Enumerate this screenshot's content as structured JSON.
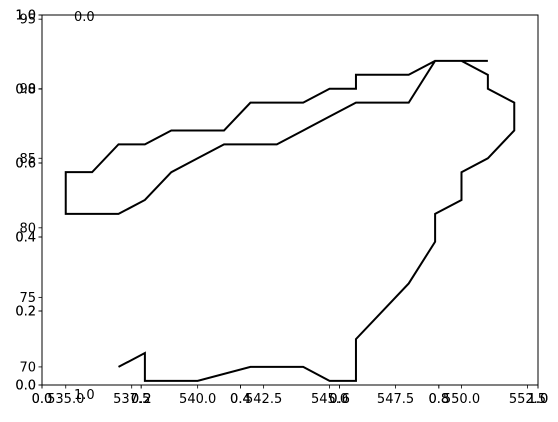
{
  "chart_data": [
    {
      "type": "line",
      "title": "",
      "xlabel": "",
      "ylabel": "",
      "xlim": [
        534.1,
        552.9
      ],
      "ylim": [
        68.7,
        95.3
      ],
      "xticks": [
        {
          "value": 535.0,
          "label": "535.0"
        },
        {
          "value": 537.5,
          "label": "537.5"
        },
        {
          "value": 540.0,
          "label": "540.0"
        },
        {
          "value": 542.5,
          "label": "542.5"
        },
        {
          "value": 545.0,
          "label": "545.0"
        },
        {
          "value": 547.5,
          "label": "547.5"
        },
        {
          "value": 550.0,
          "label": "550.0"
        },
        {
          "value": 552.5,
          "label": "552.5"
        }
      ],
      "yticks": [
        {
          "value": 70,
          "label": "70"
        },
        {
          "value": 75,
          "label": "75"
        },
        {
          "value": 80,
          "label": "80"
        },
        {
          "value": 85,
          "label": "85"
        },
        {
          "value": 90,
          "label": "90"
        },
        {
          "value": 95,
          "label": "95"
        }
      ],
      "grid": false,
      "series": [
        {
          "color": "#000000",
          "x": [
            537,
            538,
            538,
            540,
            542,
            544,
            545,
            546,
            546,
            547,
            548,
            549,
            549,
            550,
            550,
            551,
            552,
            552,
            551,
            551,
            550,
            549,
            548,
            546,
            545,
            544,
            543,
            541,
            540,
            539,
            538,
            537,
            535,
            535,
            536,
            537,
            538,
            539,
            541,
            542,
            544,
            545,
            546,
            546,
            548,
            549,
            551,
            551
          ],
          "y": [
            70,
            71,
            69,
            69,
            70,
            70,
            69,
            69,
            72,
            74,
            76,
            79,
            81,
            82,
            84,
            85,
            87,
            89,
            90,
            91,
            92,
            92,
            89,
            89,
            88,
            87,
            86,
            86,
            85,
            84,
            82,
            81,
            81,
            84,
            84,
            86,
            86,
            87,
            87,
            89,
            89,
            90,
            90,
            91,
            91,
            92,
            92,
            92
          ]
        }
      ]
    },
    {
      "type": "line",
      "xlim": [
        0.0,
        1.0
      ],
      "ylim": [
        0.0,
        1.0
      ],
      "xticks": [
        {
          "value": 0.0,
          "label": "0.0"
        },
        {
          "value": 0.2,
          "label": "0.2"
        },
        {
          "value": 0.4,
          "label": "0.4"
        },
        {
          "value": 0.6,
          "label": "0.6"
        },
        {
          "value": 0.8,
          "label": "0.8"
        },
        {
          "value": 1.0,
          "label": "1.0"
        }
      ],
      "yticks": [
        {
          "value": 0.0,
          "label": "0.0"
        },
        {
          "value": 0.2,
          "label": "0.2"
        },
        {
          "value": 0.4,
          "label": "0.4"
        },
        {
          "value": 0.6,
          "label": "0.6"
        },
        {
          "value": 0.8,
          "label": "0.8"
        },
        {
          "value": 1.0,
          "label": "1.0"
        }
      ],
      "series": []
    },
    {
      "type": "line",
      "xlim": [
        0.0,
        1.0
      ],
      "ylim": [
        0.0,
        1.0
      ],
      "xticks": [
        {
          "value": 0.0,
          "label": "0.0"
        },
        {
          "value": 0.2,
          "label": "0.2"
        },
        {
          "value": 0.4,
          "label": "0.4"
        },
        {
          "value": 0.6,
          "label": "0.6"
        },
        {
          "value": 0.8,
          "label": "0.8"
        },
        {
          "value": 1.0,
          "label": "1.0"
        }
      ],
      "yticks": [
        {
          "value": 0.0,
          "label": "0.0"
        },
        {
          "value": 0.2,
          "label": "0.2"
        },
        {
          "value": 0.4,
          "label": "0.4"
        },
        {
          "value": 0.6,
          "label": "0.6"
        },
        {
          "value": 0.8,
          "label": "0.8"
        },
        {
          "value": 1.0,
          "label": "1.0"
        }
      ],
      "series": []
    }
  ],
  "stray_labels": [
    {
      "text": "0.0",
      "anchor": "top-left"
    },
    {
      "text": "1.0",
      "anchor": "bottom-left"
    }
  ]
}
